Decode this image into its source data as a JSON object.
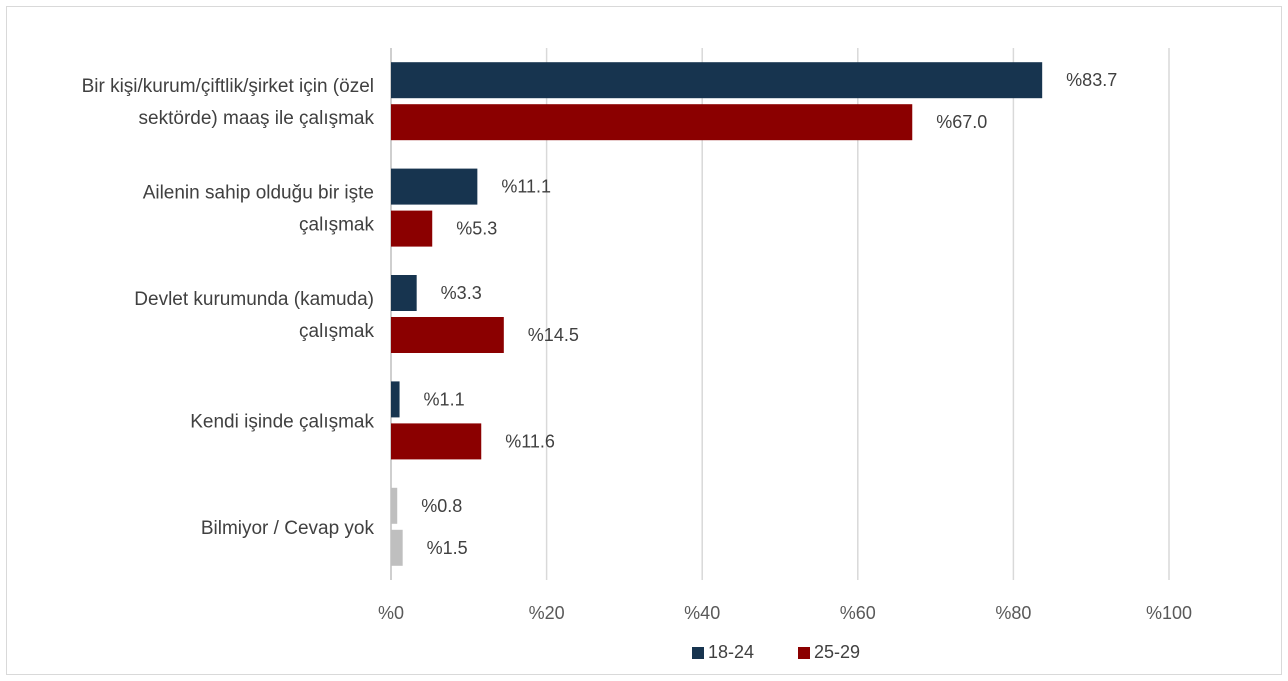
{
  "chart_data": {
    "type": "bar",
    "orientation": "horizontal",
    "categories": [
      [
        "Bir kişi/kurum/çiftlik/şirket için (özel",
        "sektörde) maaş ile çalışmak"
      ],
      [
        "Ailenin sahip olduğu bir işte",
        "çalışmak"
      ],
      [
        "Devlet kurumunda (kamuda)",
        "çalışmak"
      ],
      [
        "Kendi işinde çalışmak"
      ],
      [
        "Bilmiyor / Cevap yok"
      ]
    ],
    "series": [
      {
        "name": "18-24",
        "color": "#17344f",
        "values": [
          83.7,
          11.1,
          3.3,
          1.1,
          0.8
        ],
        "labels": [
          "%83.7",
          "%11.1",
          "%3.3",
          "%1.1",
          "%0.8"
        ]
      },
      {
        "name": "25-29",
        "color": "#8b0000",
        "values": [
          67.0,
          5.3,
          14.5,
          11.6,
          1.5
        ],
        "labels": [
          "%67.0",
          "%5.3",
          "%14.5",
          "%11.6",
          "%1.5"
        ]
      }
    ],
    "highlight_override": {
      "category_index": 4,
      "color": "#bfbfbf"
    },
    "xlim": [
      0,
      100
    ],
    "xticks": [
      0,
      20,
      40,
      60,
      80,
      100
    ],
    "xtick_labels": [
      "%0",
      "%20",
      "%40",
      "%60",
      "%80",
      "%100"
    ],
    "grid": true,
    "legend_position": "bottom",
    "title": "",
    "xlabel": "",
    "ylabel": ""
  }
}
